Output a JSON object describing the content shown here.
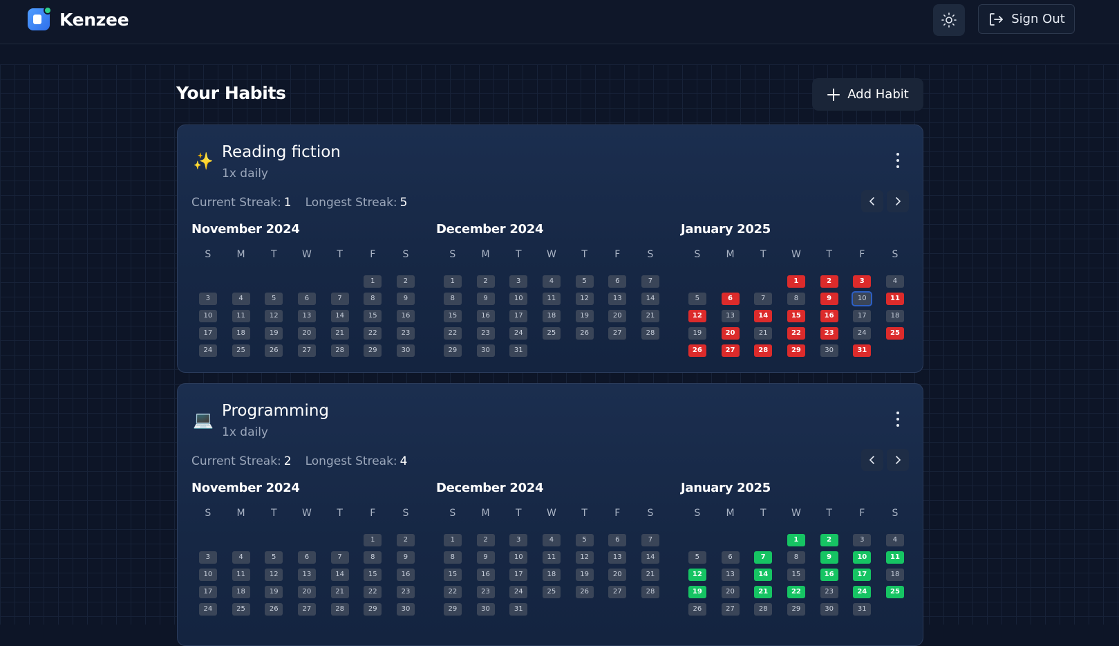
{
  "app": {
    "name": "Kenzee"
  },
  "header": {
    "sign_out_label": "Sign Out",
    "theme_icon": "sun-icon",
    "signout_icon": "logout-icon"
  },
  "page": {
    "title": "Your Habits",
    "add_habit_label": "Add Habit"
  },
  "colors": {
    "missed": "#dc2b2b",
    "done": "#16c463",
    "day": "#3a4558",
    "background": "#0d1527"
  },
  "weekday_letters": [
    "S",
    "M",
    "T",
    "W",
    "T",
    "F",
    "S"
  ],
  "habits": [
    {
      "emoji": "✨",
      "name": "Reading fiction",
      "frequency": "1x daily",
      "current_streak_label": "Current Streak:",
      "current_streak": "1",
      "longest_streak_label": "Longest Streak:",
      "longest_streak": "5",
      "mark_color": "red",
      "months": [
        {
          "title": "November 2024",
          "start_offset": 5,
          "days": 30,
          "marked": [],
          "outlined": []
        },
        {
          "title": "December 2024",
          "start_offset": 0,
          "days": 31,
          "marked": [],
          "outlined": []
        },
        {
          "title": "January 2025",
          "start_offset": 3,
          "days": 31,
          "marked": [
            1,
            2,
            3,
            6,
            9,
            11,
            12,
            14,
            15,
            16,
            20,
            22,
            23,
            25,
            26,
            27,
            28,
            29,
            31
          ],
          "outlined": [
            10
          ]
        }
      ]
    },
    {
      "emoji": "💻",
      "name": "Programming",
      "frequency": "1x daily",
      "current_streak_label": "Current Streak:",
      "current_streak": "2",
      "longest_streak_label": "Longest Streak:",
      "longest_streak": "4",
      "mark_color": "green",
      "months": [
        {
          "title": "November 2024",
          "start_offset": 5,
          "days": 30,
          "marked": [],
          "outlined": []
        },
        {
          "title": "December 2024",
          "start_offset": 0,
          "days": 31,
          "marked": [],
          "outlined": []
        },
        {
          "title": "January 2025",
          "start_offset": 3,
          "days": 31,
          "marked": [
            1,
            2,
            7,
            9,
            10,
            11,
            12,
            14,
            16,
            17,
            19,
            21,
            22,
            24,
            25
          ],
          "outlined": []
        }
      ]
    }
  ]
}
